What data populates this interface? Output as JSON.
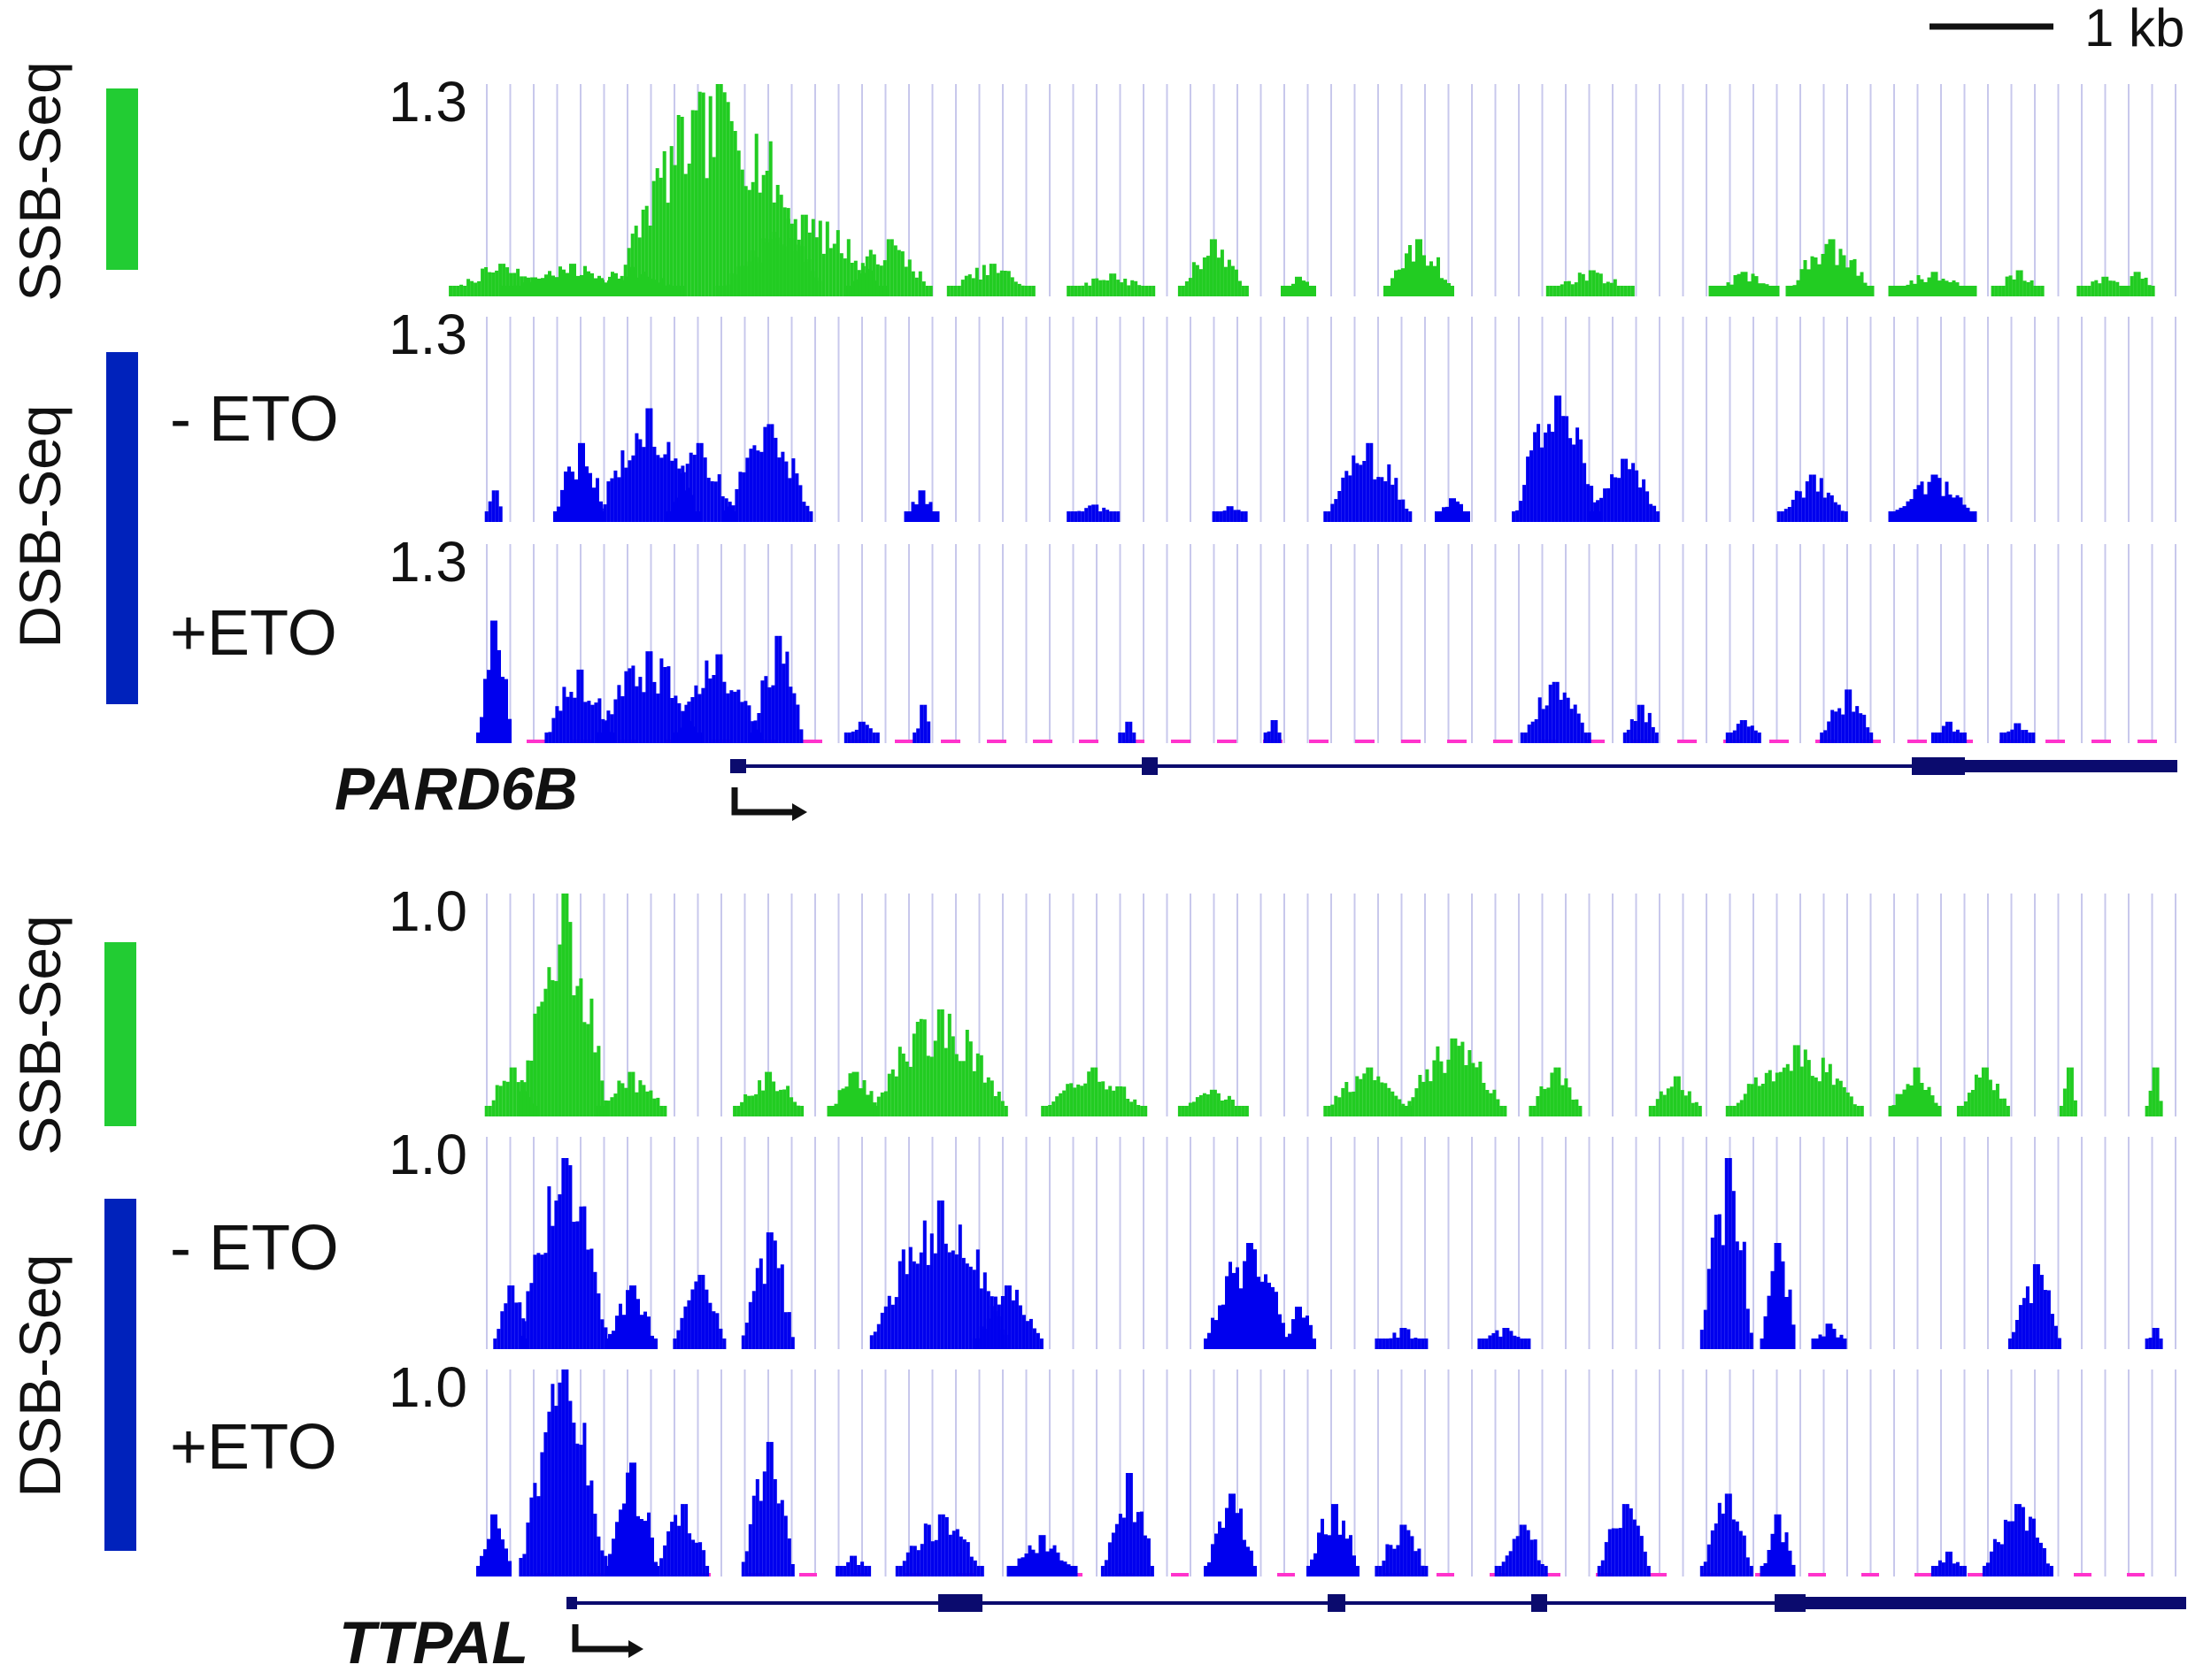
{
  "scale_bar": {
    "label": "1 kb"
  },
  "colors": {
    "ssb": "#22cc22",
    "dsb": "#0000ee",
    "ssb_bar": "#22cc33",
    "dsb_bar": "#0022bb",
    "grid": "#c8c8ec",
    "gene": "#0b0b6e",
    "baseline_pink": "#ff33cc"
  },
  "chart_data": [
    {
      "type": "bar",
      "gene_label": "PARD6B",
      "assay_labels": {
        "ssb": "SSB-Seq",
        "dsb": "DSB-Seq"
      },
      "tracks": [
        {
          "name": "SSB-Seq",
          "ymax_label": "1.3",
          "ylim": [
            0,
            1.3
          ],
          "color": "ssb",
          "peaks": [
            [
              0.014,
              0.2,
              0.06
            ],
            [
              0.055,
              0.2,
              0.08
            ],
            [
              0.09,
              0.18,
              0.06
            ],
            [
              0.14,
              1.3,
              0.12
            ],
            [
              0.19,
              0.5,
              0.1
            ],
            [
              0.24,
              0.35,
              0.05
            ],
            [
              0.3,
              0.2,
              0.05
            ],
            [
              0.37,
              0.14,
              0.05
            ],
            [
              0.43,
              0.35,
              0.04
            ],
            [
              0.48,
              0.12,
              0.02
            ],
            [
              0.55,
              0.35,
              0.04
            ],
            [
              0.65,
              0.16,
              0.05
            ],
            [
              0.74,
              0.15,
              0.04
            ],
            [
              0.79,
              0.35,
              0.05
            ],
            [
              0.85,
              0.15,
              0.05
            ],
            [
              0.9,
              0.16,
              0.03
            ],
            [
              0.95,
              0.12,
              0.03
            ],
            [
              0.97,
              0.15,
              0.02
            ]
          ]
        },
        {
          "name": "- ETO",
          "ymax_label": "1.3",
          "ylim": [
            0,
            1.3
          ],
          "color": "dsb",
          "peaks": [
            [
              0.01,
              0.2,
              0.01
            ],
            [
              0.06,
              0.5,
              0.03
            ],
            [
              0.1,
              0.72,
              0.06
            ],
            [
              0.13,
              0.5,
              0.04
            ],
            [
              0.17,
              0.62,
              0.05
            ],
            [
              0.26,
              0.2,
              0.02
            ],
            [
              0.36,
              0.11,
              0.03
            ],
            [
              0.44,
              0.1,
              0.02
            ],
            [
              0.52,
              0.5,
              0.05
            ],
            [
              0.57,
              0.15,
              0.02
            ],
            [
              0.63,
              0.8,
              0.05
            ],
            [
              0.67,
              0.4,
              0.04
            ],
            [
              0.78,
              0.3,
              0.04
            ],
            [
              0.85,
              0.3,
              0.05
            ]
          ]
        },
        {
          "name": "+ETO",
          "ymax_label": "1.3",
          "ylim": [
            0,
            1.3
          ],
          "color": "dsb",
          "peaks": [
            [
              0.01,
              0.8,
              0.02
            ],
            [
              0.06,
              0.48,
              0.04
            ],
            [
              0.1,
              0.6,
              0.06
            ],
            [
              0.14,
              0.58,
              0.05
            ],
            [
              0.175,
              0.7,
              0.03
            ],
            [
              0.225,
              0.14,
              0.02
            ],
            [
              0.26,
              0.25,
              0.01
            ],
            [
              0.38,
              0.14,
              0.01
            ],
            [
              0.465,
              0.15,
              0.01
            ],
            [
              0.63,
              0.4,
              0.04
            ],
            [
              0.68,
              0.25,
              0.02
            ],
            [
              0.74,
              0.15,
              0.02
            ],
            [
              0.8,
              0.35,
              0.03
            ],
            [
              0.86,
              0.14,
              0.02
            ],
            [
              0.9,
              0.13,
              0.02
            ]
          ]
        }
      ]
    },
    {
      "type": "bar",
      "gene_label": "TTPAL",
      "assay_labels": {
        "ssb": "SSB-Seq",
        "dsb": "DSB-Seq"
      },
      "tracks": [
        {
          "name": "SSB-Seq",
          "ymax_label": "1.0",
          "ylim": [
            0,
            1.0
          ],
          "color": "ssb",
          "peaks": [
            [
              0.02,
              0.22,
              0.03
            ],
            [
              0.05,
              1.0,
              0.05
            ],
            [
              0.09,
              0.2,
              0.04
            ],
            [
              0.17,
              0.2,
              0.04
            ],
            [
              0.22,
              0.2,
              0.03
            ],
            [
              0.27,
              0.48,
              0.08
            ],
            [
              0.36,
              0.22,
              0.06
            ],
            [
              0.43,
              0.12,
              0.04
            ],
            [
              0.52,
              0.22,
              0.05
            ],
            [
              0.57,
              0.35,
              0.06
            ],
            [
              0.63,
              0.22,
              0.03
            ],
            [
              0.7,
              0.18,
              0.03
            ],
            [
              0.77,
              0.32,
              0.08
            ],
            [
              0.84,
              0.22,
              0.03
            ],
            [
              0.88,
              0.22,
              0.03
            ],
            [
              0.93,
              0.22,
              0.01
            ],
            [
              0.98,
              0.22,
              0.01
            ]
          ]
        },
        {
          "name": "- ETO",
          "ymax_label": "1.0",
          "ylim": [
            0,
            1.0
          ],
          "color": "dsb",
          "peaks": [
            [
              0.02,
              0.3,
              0.02
            ],
            [
              0.05,
              0.9,
              0.05
            ],
            [
              0.09,
              0.3,
              0.03
            ],
            [
              0.13,
              0.35,
              0.03
            ],
            [
              0.17,
              0.55,
              0.03
            ],
            [
              0.27,
              0.7,
              0.08
            ],
            [
              0.31,
              0.3,
              0.04
            ],
            [
              0.45,
              0.5,
              0.05
            ],
            [
              0.48,
              0.2,
              0.02
            ],
            [
              0.54,
              0.1,
              0.03
            ],
            [
              0.6,
              0.1,
              0.03
            ],
            [
              0.73,
              0.9,
              0.03
            ],
            [
              0.76,
              0.5,
              0.02
            ],
            [
              0.79,
              0.12,
              0.02
            ],
            [
              0.91,
              0.4,
              0.03
            ],
            [
              0.98,
              0.1,
              0.01
            ]
          ]
        },
        {
          "name": "+ETO",
          "ymax_label": "1.0",
          "ylim": [
            0,
            1.0
          ],
          "color": "dsb",
          "peaks": [
            [
              0.01,
              0.3,
              0.02
            ],
            [
              0.05,
              1.0,
              0.05
            ],
            [
              0.09,
              0.55,
              0.03
            ],
            [
              0.12,
              0.35,
              0.03
            ],
            [
              0.17,
              0.65,
              0.03
            ],
            [
              0.22,
              0.1,
              0.02
            ],
            [
              0.27,
              0.3,
              0.05
            ],
            [
              0.33,
              0.2,
              0.04
            ],
            [
              0.38,
              0.5,
              0.03
            ],
            [
              0.44,
              0.4,
              0.03
            ],
            [
              0.5,
              0.35,
              0.03
            ],
            [
              0.54,
              0.25,
              0.03
            ],
            [
              0.61,
              0.25,
              0.03
            ],
            [
              0.67,
              0.35,
              0.03
            ],
            [
              0.73,
              0.4,
              0.03
            ],
            [
              0.76,
              0.3,
              0.02
            ],
            [
              0.86,
              0.12,
              0.02
            ],
            [
              0.9,
              0.35,
              0.04
            ]
          ]
        }
      ]
    }
  ]
}
